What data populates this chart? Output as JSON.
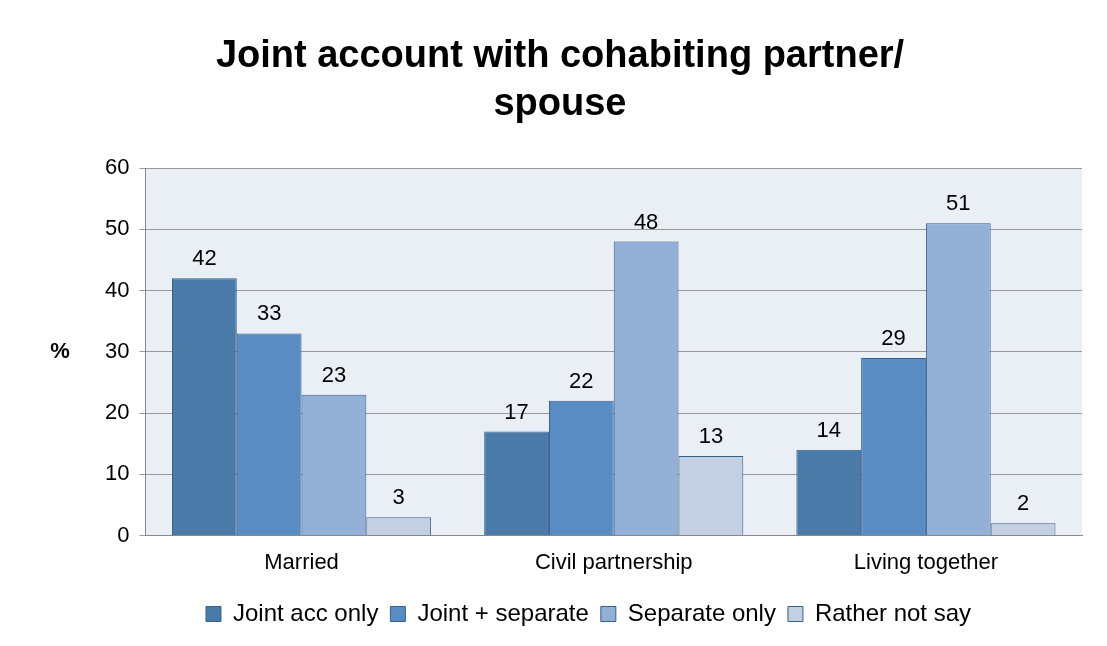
{
  "chart_data": {
    "type": "bar",
    "title": "Joint account with cohabiting partner/ spouse",
    "ylabel": "%",
    "categories": [
      "Married",
      "Civil partnership",
      "Living together"
    ],
    "series": [
      {
        "name": "Joint acc only",
        "color": "#4a7aa8",
        "values": [
          42,
          17,
          14
        ]
      },
      {
        "name": "Joint + separate",
        "color": "#5a8cc4",
        "values": [
          33,
          22,
          29
        ]
      },
      {
        "name": "Separate only",
        "color": "#93b1d6",
        "values": [
          23,
          48,
          51
        ]
      },
      {
        "name": "Rather not say",
        "color": "#c3cfe3",
        "values": [
          3,
          13,
          2
        ]
      }
    ],
    "ylim": [
      0,
      60
    ],
    "yticks": [
      0,
      10,
      20,
      30,
      40,
      50,
      60
    ],
    "grid": "y",
    "legend": "bottom",
    "data_labels": true
  }
}
